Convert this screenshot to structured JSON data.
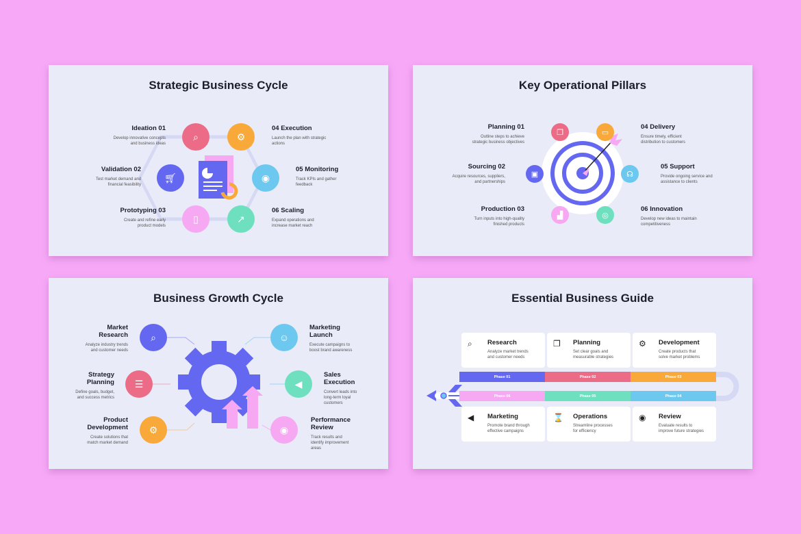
{
  "colors": {
    "background": "#f7a9f8",
    "slide": "#e9ebf8",
    "blue": "#6468f0",
    "red": "#ec6b86",
    "orange": "#f9a93a",
    "cyan": "#6dc8ef",
    "pink": "#f6a8f2",
    "green": "#6ee0bf"
  },
  "slide1": {
    "title": "Strategic Business Cycle",
    "items": [
      {
        "title": "Ideation 01",
        "desc": "Develop innovative concepts\nand business ideas",
        "icon": "search-icon"
      },
      {
        "title": "Validation 02",
        "desc": "Test market demand and\nfinancial feasibility",
        "icon": "cart-icon"
      },
      {
        "title": "Prototyping 03",
        "desc": "Create and refine early\nproduct models",
        "icon": "tablet-icon"
      },
      {
        "title": "04 Execution",
        "desc": "Launch the plan with strategic\nactions",
        "icon": "gear-icon"
      },
      {
        "title": "05 Monitoring",
        "desc": "Track KPIs and gather\nfeedback",
        "icon": "eye-icon"
      },
      {
        "title": "06 Scaling",
        "desc": "Expand operations and\nincrease market reach",
        "icon": "chart-icon"
      }
    ]
  },
  "slide2": {
    "title": "Key Operational Pillars",
    "items": [
      {
        "title": "Planning 01",
        "desc": "Outline steps to achieve\nstrategic business objectives",
        "icon": "copy-icon"
      },
      {
        "title": "Sourcing 02",
        "desc": "Acquire resources, suppliers,\nand partnerships",
        "icon": "box-icon"
      },
      {
        "title": "Production 03",
        "desc": "Turn inputs into high-quality\nfinished products",
        "icon": "factory-icon"
      },
      {
        "title": "04 Delivery",
        "desc": "Ensure timely, efficient\ndistribution to customers",
        "icon": "truck-icon"
      },
      {
        "title": "05 Support",
        "desc": "Provide ongoing service and\nassistance to clients",
        "icon": "headset-icon"
      },
      {
        "title": "06 Innovation",
        "desc": "Develop new ideas to maintain\ncompetitiveness",
        "icon": "target-icon"
      }
    ]
  },
  "slide3": {
    "title": "Business Growth Cycle",
    "items": [
      {
        "title": "Market\nResearch",
        "desc": "Analyze industry trends\nand customer needs",
        "icon": "search-icon"
      },
      {
        "title": "Strategy\nPlanning",
        "desc": "Define goals, budget,\nand success metrics",
        "icon": "document-icon"
      },
      {
        "title": "Product\nDevelopment",
        "desc": "Create solutions that\nmatch market demand",
        "icon": "gear-icon"
      },
      {
        "title": "Marketing\nLaunch",
        "desc": "Execute campaigns to\nboost brand awareness",
        "icon": "user-icon"
      },
      {
        "title": "Sales\nExecution",
        "desc": "Convert leads into\nlong-term loyal\ncustomers",
        "icon": "megaphone-icon"
      },
      {
        "title": "Performance\nReview",
        "desc": "Track results and\nidentify improvement\nareas",
        "icon": "eye-icon"
      }
    ]
  },
  "slide4": {
    "title": "Essential Business Guide",
    "cards": [
      {
        "title": "Research",
        "desc": "Analyze market trends\nand customer needs",
        "icon": "search-icon"
      },
      {
        "title": "Planning",
        "desc": "Set clear goals and\nmeasurable strategies",
        "icon": "copy-icon"
      },
      {
        "title": "Development",
        "desc": "Create products that\nsolve market problems",
        "icon": "gear-icon"
      },
      {
        "title": "Marketing",
        "desc": "Promote brand through\neffective campaigns",
        "icon": "megaphone-icon"
      },
      {
        "title": "Operations",
        "desc": "Streamline processes\nfor efficiency",
        "icon": "hourglass-icon"
      },
      {
        "title": "Review",
        "desc": "Evaluate results to\nimprove future strategies",
        "icon": "eye-icon"
      }
    ],
    "phases": [
      "Phase 01",
      "Phase 02",
      "Phase 03",
      "Phase 06",
      "Phase 05",
      "Phase 04"
    ]
  }
}
